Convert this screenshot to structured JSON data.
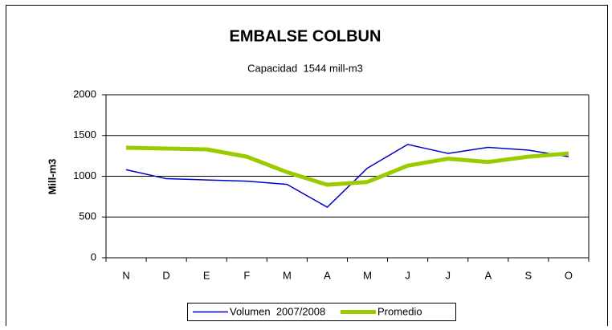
{
  "chart_data": {
    "type": "line",
    "title": "EMBALSE COLBUN",
    "subtitle": "Capacidad  1544 mill-m3",
    "y_label": "Mill-m3",
    "categories": [
      "N",
      "D",
      "E",
      "F",
      "M",
      "A",
      "M",
      "J",
      "J",
      "A",
      "S",
      "O"
    ],
    "series": [
      {
        "name": "Volumen  2007/2008",
        "color": "#0000cc",
        "width": 1.5,
        "values": [
          1080,
          970,
          955,
          940,
          900,
          620,
          1100,
          1390,
          1280,
          1355,
          1320,
          1240
        ]
      },
      {
        "name": "Promedio",
        "color": "#99cc00",
        "width": 5,
        "values": [
          1350,
          1340,
          1330,
          1240,
          1050,
          895,
          930,
          1130,
          1215,
          1175,
          1240,
          1280
        ]
      }
    ],
    "ylim": [
      0,
      2000
    ],
    "yticks": [
      0,
      500,
      1000,
      1500,
      2000
    ],
    "grid": true,
    "legend": "bottom"
  }
}
